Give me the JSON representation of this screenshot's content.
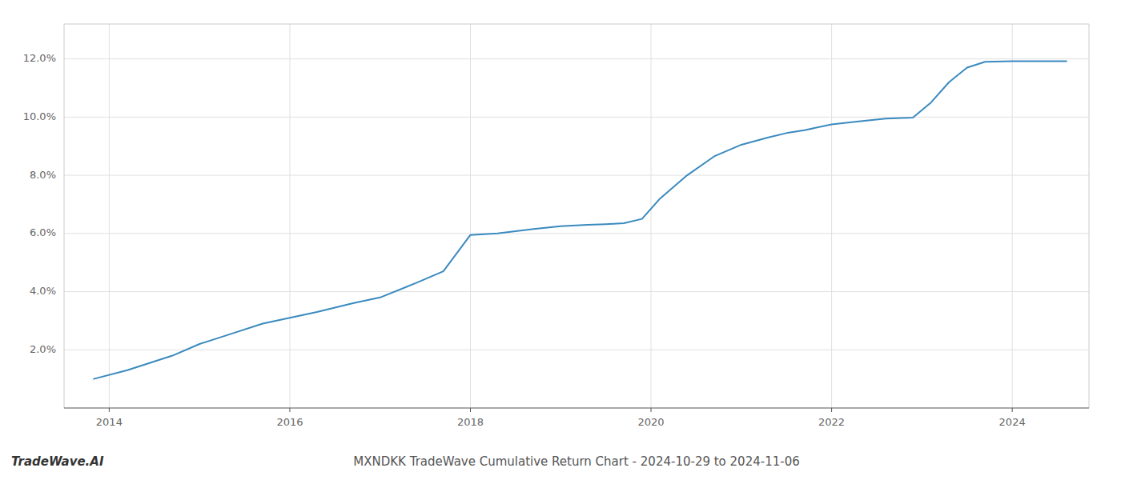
{
  "chart_data": {
    "type": "line",
    "title": "MXNDKK TradeWave Cumulative Return Chart - 2024-10-29 to 2024-11-06",
    "annotations": [
      "TradeWave.AI"
    ],
    "x": [
      2013.83,
      2014.2,
      2014.7,
      2015.0,
      2015.3,
      2015.7,
      2016.0,
      2016.3,
      2016.7,
      2017.0,
      2017.4,
      2017.7,
      2018.0,
      2018.3,
      2018.7,
      2019.0,
      2019.3,
      2019.5,
      2019.7,
      2019.9,
      2020.1,
      2020.4,
      2020.7,
      2021.0,
      2021.3,
      2021.5,
      2021.7,
      2022.0,
      2022.3,
      2022.6,
      2022.9,
      2023.1,
      2023.3,
      2023.5,
      2023.7,
      2024.0,
      2024.3,
      2024.6
    ],
    "values": [
      1.0,
      1.3,
      1.8,
      2.2,
      2.5,
      2.9,
      3.1,
      3.3,
      3.6,
      3.8,
      4.3,
      4.7,
      5.95,
      6.0,
      6.15,
      6.25,
      6.3,
      6.32,
      6.35,
      6.5,
      7.2,
      8.0,
      8.65,
      9.05,
      9.3,
      9.45,
      9.55,
      9.75,
      9.85,
      9.95,
      9.98,
      10.5,
      11.2,
      11.7,
      11.9,
      11.92,
      11.92,
      11.92
    ],
    "color": "#3a8abf",
    "xlim": [
      2013.5,
      2024.85
    ],
    "ylim": [
      0.0,
      13.2
    ],
    "xticks": [
      2014,
      2016,
      2018,
      2020,
      2022,
      2024
    ],
    "yticks": [
      {
        "value": 2.0,
        "label": "2.0%"
      },
      {
        "value": 4.0,
        "label": "4.0%"
      },
      {
        "value": 6.0,
        "label": "6.0%"
      },
      {
        "value": 8.0,
        "label": "8.0%"
      },
      {
        "value": 10.0,
        "label": "10.0%"
      },
      {
        "value": 12.0,
        "label": "12.0%"
      }
    ],
    "grid": true
  }
}
